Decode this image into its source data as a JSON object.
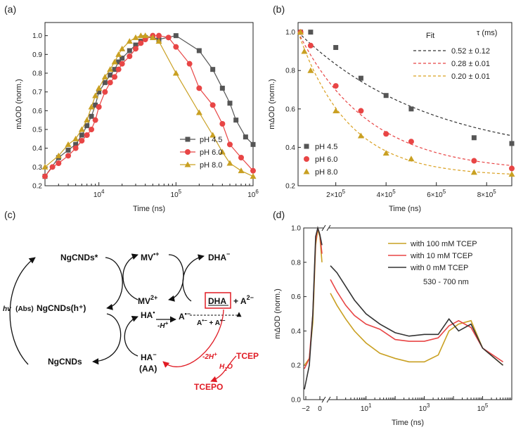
{
  "chart_data": [
    {
      "panel": "(a)",
      "type": "line",
      "xscale": "log",
      "xlabel": "Time (ns)",
      "ylabel": "mΔOD (norm.)",
      "xlim": [
        2000,
        1000000
      ],
      "ylim": [
        0.2,
        1.07
      ],
      "xticks": [
        {
          "v": 10000,
          "base": "10",
          "exp": "4"
        },
        {
          "v": 100000,
          "base": "10",
          "exp": "5"
        },
        {
          "v": 1000000,
          "base": "10",
          "exp": "6"
        }
      ],
      "yticks": [
        "0.2",
        "0.3",
        "0.4",
        "0.5",
        "0.6",
        "0.7",
        "0.8",
        "0.9",
        "1.0"
      ],
      "legend_position": "lower-right",
      "series": [
        {
          "name": "pH 4.5",
          "color": "#555555",
          "marker": "square",
          "x": [
            2000,
            3000,
            4000,
            5000,
            6000,
            7000,
            8000,
            9000,
            10000,
            12000,
            14000,
            16000,
            18000,
            20000,
            25000,
            30000,
            35000,
            40000,
            50000,
            60000,
            100000,
            200000,
            300000,
            400000,
            500000,
            600000,
            800000,
            1000000
          ],
          "y": [
            0.25,
            0.35,
            0.39,
            0.42,
            0.47,
            0.52,
            0.57,
            0.63,
            0.7,
            0.75,
            0.79,
            0.82,
            0.86,
            0.88,
            0.92,
            0.95,
            0.97,
            0.99,
            0.99,
            0.98,
            1.0,
            0.92,
            0.82,
            0.72,
            0.64,
            0.55,
            0.46,
            0.42
          ]
        },
        {
          "name": "pH 6.0",
          "color": "#e84545",
          "marker": "circle",
          "x": [
            2000,
            2500,
            3000,
            4000,
            5000,
            6000,
            7000,
            8000,
            9000,
            10000,
            12000,
            14000,
            16000,
            18000,
            20000,
            25000,
            30000,
            35000,
            40000,
            50000,
            60000,
            80000,
            100000,
            150000,
            200000,
            300000,
            400000,
            500000,
            700000,
            1000000
          ],
          "y": [
            0.25,
            0.3,
            0.32,
            0.36,
            0.4,
            0.44,
            0.47,
            0.5,
            0.55,
            0.62,
            0.7,
            0.75,
            0.78,
            0.82,
            0.85,
            0.89,
            0.93,
            0.96,
            0.98,
            1.0,
            1.0,
            0.99,
            0.94,
            0.85,
            0.72,
            0.63,
            0.53,
            0.42,
            0.35,
            0.28
          ]
        },
        {
          "name": "pH 8.0",
          "color": "#c9a022",
          "marker": "triangle",
          "x": [
            2000,
            3000,
            4000,
            5000,
            6000,
            7000,
            8000,
            9000,
            10000,
            12000,
            14000,
            16000,
            18000,
            20000,
            25000,
            30000,
            35000,
            40000,
            50000,
            60000,
            100000,
            200000,
            300000,
            400000,
            500000,
            700000,
            1000000
          ],
          "y": [
            0.3,
            0.36,
            0.42,
            0.45,
            0.5,
            0.55,
            0.62,
            0.68,
            0.72,
            0.78,
            0.82,
            0.86,
            0.9,
            0.93,
            0.97,
            0.99,
            1.0,
            1.0,
            0.99,
            0.97,
            0.8,
            0.59,
            0.47,
            0.38,
            0.32,
            0.28,
            0.25
          ]
        }
      ]
    },
    {
      "panel": "(b)",
      "type": "scatter",
      "xlabel": "Time (ns)",
      "ylabel": "mΔOD (norm.)",
      "xlim": [
        50000,
        900000
      ],
      "ylim": [
        0.2,
        1.05
      ],
      "xticks": [
        {
          "v": 200000,
          "mant": "2×10",
          "exp": "5"
        },
        {
          "v": 400000,
          "mant": "4×10",
          "exp": "5"
        },
        {
          "v": 600000,
          "mant": "6×10",
          "exp": "5"
        },
        {
          "v": 800000,
          "mant": "8×10",
          "exp": "5"
        }
      ],
      "yticks": [
        "0.2",
        "0.4",
        "0.6",
        "0.8",
        "1.0"
      ],
      "fit_legend": {
        "fit_header": "Fit",
        "tau_header": "τ (ms)",
        "rows": [
          "0.52 ± 0.12",
          "0.28 ± 0.01",
          "0.20 ± 0.01"
        ]
      },
      "fit_model": {
        "t0": 50000,
        "tau_ms": [
          0.52,
          0.28,
          0.2
        ],
        "offset": [
          0.33,
          0.27,
          0.25
        ]
      },
      "series": [
        {
          "name": "pH 4.5",
          "color": "#555555",
          "fit_color": "#333333",
          "marker": "square",
          "x": [
            60000,
            100000,
            200000,
            300000,
            400000,
            500000,
            750000,
            900000
          ],
          "y": [
            1.0,
            1.0,
            0.92,
            0.76,
            0.67,
            0.6,
            0.45,
            0.42
          ]
        },
        {
          "name": "pH 6.0",
          "color": "#e84545",
          "fit_color": "#e84545",
          "marker": "circle",
          "x": [
            60000,
            100000,
            200000,
            300000,
            400000,
            500000,
            750000,
            900000
          ],
          "y": [
            1.0,
            0.93,
            0.72,
            0.59,
            0.47,
            0.43,
            0.33,
            0.29
          ]
        },
        {
          "name": "pH 8.0",
          "color": "#c9a022",
          "fit_color": "#d9a020",
          "marker": "triangle",
          "x": [
            60000,
            75000,
            100000,
            200000,
            300000,
            400000,
            500000,
            750000,
            900000
          ],
          "y": [
            1.0,
            0.9,
            0.8,
            0.59,
            0.46,
            0.37,
            0.34,
            0.27,
            0.26
          ]
        }
      ]
    },
    {
      "panel": "(d)",
      "type": "line",
      "xscale": "broken-log",
      "xlabel": "Time (ns)",
      "ylabel": "mΔOD (norm.)",
      "ylim": [
        0.0,
        1.0
      ],
      "yticks": [
        "0.0",
        "0.2",
        "0.4",
        "0.6",
        "0.8",
        "1.0"
      ],
      "xticks_linear": [
        "−2",
        "0"
      ],
      "xticks_log": [
        {
          "v": 10,
          "base": "10",
          "exp": "1"
        },
        {
          "v": 1000,
          "base": "10",
          "exp": "3"
        },
        {
          "v": 100000,
          "base": "10",
          "exp": "5"
        }
      ],
      "annotation": "530 - 700 nm",
      "series": [
        {
          "name": "with 100 mM TCEP",
          "color": "#c9a022",
          "x": [
            -2.2,
            -1.5,
            -1.0,
            -0.6,
            -0.3,
            0,
            0.3,
            0.6,
            1.0,
            2,
            4,
            10,
            30,
            100,
            300,
            1000,
            3000,
            7000,
            15000,
            40000,
            100000,
            500000
          ],
          "y": [
            0.2,
            0.24,
            0.45,
            0.9,
            0.99,
            0.95,
            0.8,
            0.62,
            0.55,
            0.47,
            0.4,
            0.33,
            0.27,
            0.24,
            0.22,
            0.22,
            0.26,
            0.4,
            0.44,
            0.46,
            0.3,
            0.2
          ]
        },
        {
          "name": "with 10 mM TCEP",
          "color": "#e84545",
          "x": [
            -2.2,
            -1.5,
            -1.0,
            -0.6,
            -0.3,
            0,
            0.3,
            0.6,
            1.0,
            2,
            4,
            10,
            30,
            100,
            300,
            1000,
            3000,
            7000,
            15000,
            40000,
            100000,
            500000
          ],
          "y": [
            0.18,
            0.24,
            0.5,
            0.92,
            1.0,
            0.96,
            0.85,
            0.7,
            0.63,
            0.55,
            0.49,
            0.44,
            0.41,
            0.35,
            0.34,
            0.34,
            0.36,
            0.43,
            0.46,
            0.42,
            0.3,
            0.22
          ]
        },
        {
          "name": "with 0 mM TCEP",
          "color": "#333333",
          "x": [
            -2.2,
            -1.5,
            -1.0,
            -0.6,
            -0.3,
            0,
            0.3,
            0.6,
            1.0,
            2,
            4,
            10,
            30,
            100,
            300,
            1000,
            3000,
            7000,
            15000,
            40000,
            100000,
            500000
          ],
          "y": [
            0.06,
            0.2,
            0.5,
            0.95,
            1.0,
            0.96,
            0.9,
            0.78,
            0.74,
            0.66,
            0.58,
            0.5,
            0.44,
            0.39,
            0.37,
            0.38,
            0.38,
            0.47,
            0.4,
            0.44,
            0.3,
            0.2
          ]
        }
      ]
    }
  ],
  "panels": {
    "a": "(a)",
    "b": "(b)",
    "c": "(c)",
    "d": "(d)"
  },
  "scheme": {
    "ngcnds_star": "NgCNDs*",
    "ngcnds_h": "NgCNDs(h⁺)",
    "ngcnds": "NgCNDs",
    "hv": "hv",
    "abs": "(Abs)",
    "mv_rad": "MV•+",
    "mv2": "MV2+",
    "dha_minus": "DHA−",
    "dha": "DHA",
    "plus_a2": "+ A2−",
    "ha_rad": "HA•",
    "a_rad": "A•−",
    "minus_h": "-H⁺",
    "aa_pair": "A•− + A•−",
    "ha_minus": "HA−",
    "aa": "(AA)",
    "minus_2h": "-2H⁺",
    "tcep": "TCEP",
    "h2o": "H2O",
    "tcepo": "TCEPO"
  }
}
